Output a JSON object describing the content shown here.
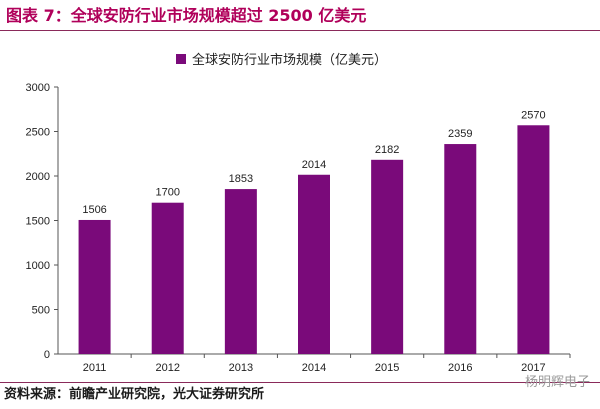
{
  "figure": {
    "title": "图表 7：全球安防行业市场规模超过 2500 亿美元",
    "source": "资料来源：前瞻产业研究院，光大证券研究所",
    "watermark": "杨明辉电子",
    "title_color": "#b0005a",
    "rule_color": "#8a2a5a"
  },
  "chart_data": {
    "type": "bar",
    "categories": [
      "2011",
      "2012",
      "2013",
      "2014",
      "2015",
      "2016",
      "2017"
    ],
    "series": [
      {
        "name": "全球安防行业市场规模（亿美元）",
        "values": [
          1506,
          1700,
          1853,
          2014,
          2182,
          2359,
          2570
        ],
        "color": "#7a0a7a"
      }
    ],
    "ylim": [
      0,
      3000
    ],
    "yticks": [
      0,
      500,
      1000,
      1500,
      2000,
      2500,
      3000
    ],
    "data_labels": true,
    "grid": false,
    "legend_position": "top"
  }
}
